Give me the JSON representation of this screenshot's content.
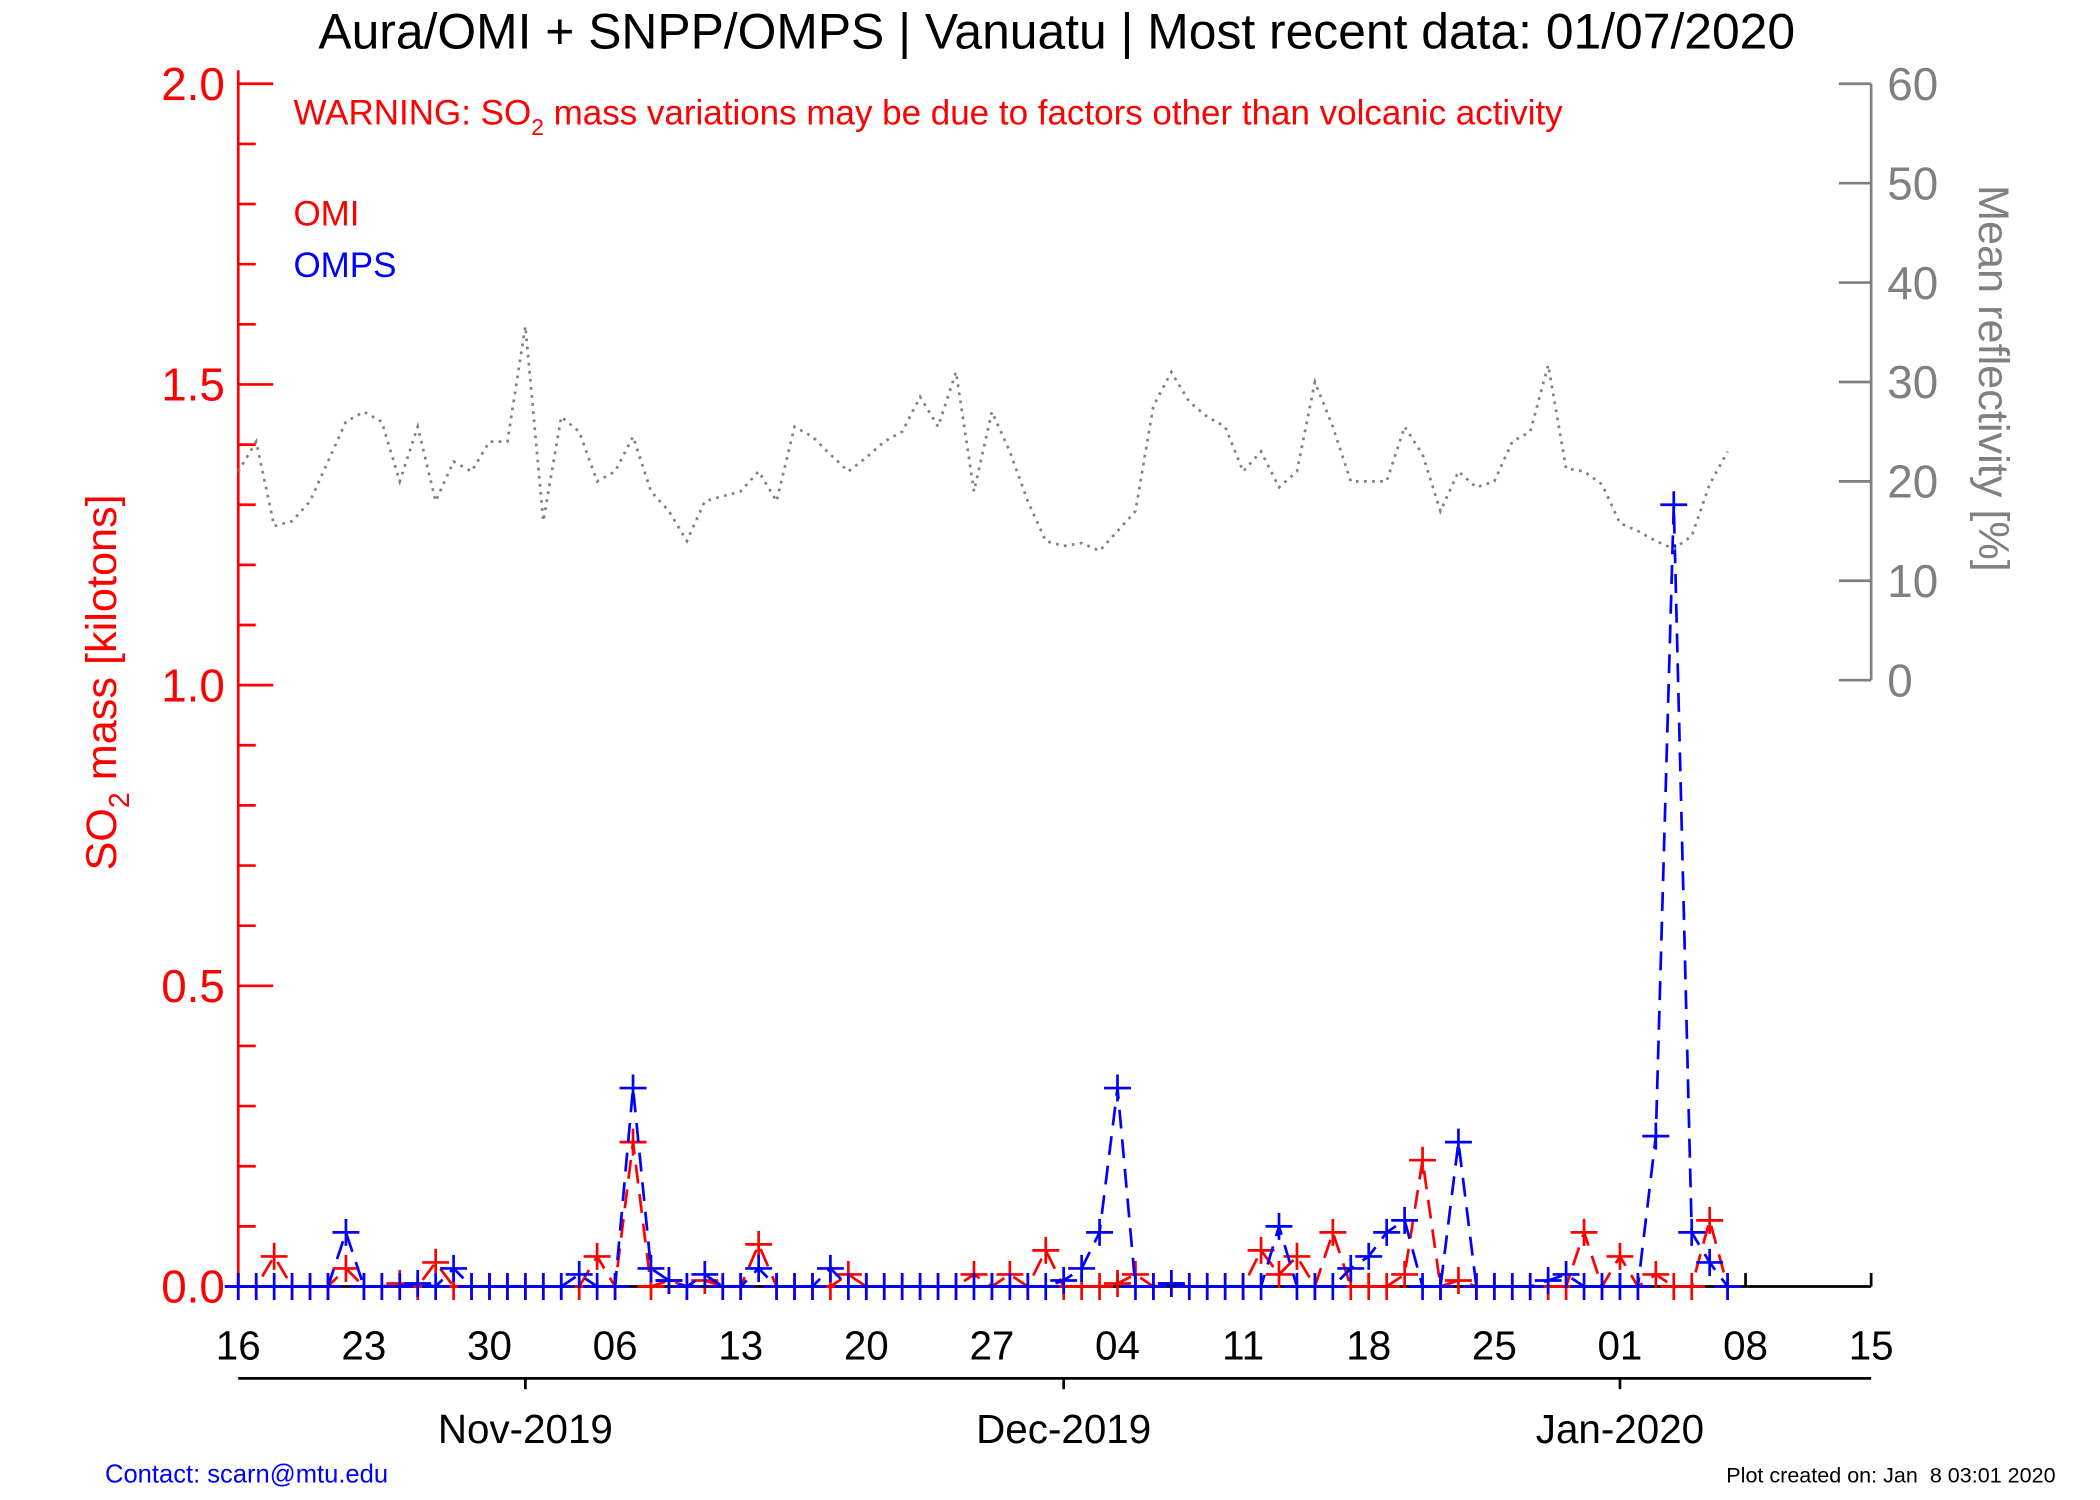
{
  "chart_data": {
    "type": "line",
    "title": "Aura/OMI + SNPP/OMPS | Vanuatu | Most recent data: 01/07/2020",
    "warning": [
      "WARNING: SO",
      "2",
      " mass variations may be due to factors other than volcanic activity"
    ],
    "ylabel": [
      "SO",
      "2",
      " mass [kilotons]"
    ],
    "y2label": "Mean reflectivity [%]",
    "contact": "Contact: scarn@mtu.edu",
    "created": "Plot created on: Jan  8 03:01 2020",
    "x": [
      0,
      1,
      2,
      3,
      4,
      5,
      6,
      7,
      8,
      9,
      10,
      11,
      12,
      13,
      14,
      15,
      16,
      17,
      18,
      19,
      20,
      21,
      22,
      23,
      24,
      25,
      26,
      27,
      28,
      29,
      30,
      31,
      32,
      33,
      34,
      35,
      36,
      37,
      38,
      39,
      40,
      41,
      42,
      43,
      44,
      45,
      46,
      47,
      48,
      49,
      50,
      51,
      52,
      53,
      54,
      55,
      56,
      57,
      58,
      59,
      60,
      61,
      62,
      63,
      64,
      65,
      66,
      67,
      68,
      69,
      70,
      71,
      72,
      73,
      74,
      75,
      76,
      77,
      78,
      79,
      80,
      81,
      82,
      83
    ],
    "xlim": [
      0,
      91
    ],
    "xticks": [
      {
        "value": 0,
        "label": "16"
      },
      {
        "value": 7,
        "label": "23"
      },
      {
        "value": 14,
        "label": "30"
      },
      {
        "value": 21,
        "label": "06"
      },
      {
        "value": 28,
        "label": "13"
      },
      {
        "value": 35,
        "label": "20"
      },
      {
        "value": 42,
        "label": "27"
      },
      {
        "value": 49,
        "label": "04"
      },
      {
        "value": 56,
        "label": "11"
      },
      {
        "value": 63,
        "label": "18"
      },
      {
        "value": 70,
        "label": "25"
      },
      {
        "value": 77,
        "label": "01"
      },
      {
        "value": 84,
        "label": "08"
      },
      {
        "value": 91,
        "label": "15"
      }
    ],
    "months": [
      {
        "value": 16,
        "label": "Nov-2019"
      },
      {
        "value": 46,
        "label": "Dec-2019"
      },
      {
        "value": 77,
        "label": "Jan-2020"
      }
    ],
    "ylim": [
      0,
      2
    ],
    "yticks": [
      {
        "value": 0,
        "label": "0.0"
      },
      {
        "value": 0.5,
        "label": "0.5"
      },
      {
        "value": 1,
        "label": "1.0"
      },
      {
        "value": 1.5,
        "label": "1.5"
      },
      {
        "value": 2,
        "label": "2.0"
      }
    ],
    "y2lim": [
      -61,
      60
    ],
    "y2ticks": [
      0,
      10,
      20,
      30,
      40,
      50,
      60
    ],
    "series": [
      {
        "name": "OMI",
        "color": "#ff0000",
        "values": [
          0,
          0,
          0.05,
          0,
          0,
          0,
          0.03,
          0,
          0,
          0.005,
          0,
          0.04,
          0,
          0,
          0,
          0,
          0,
          0,
          0,
          0,
          0.05,
          0,
          0.24,
          0,
          0.01,
          0,
          0.01,
          0,
          0,
          0.07,
          0,
          0,
          0,
          0,
          0.02,
          0,
          0,
          0,
          0,
          0,
          0,
          0.02,
          0,
          0.02,
          0,
          0.06,
          0,
          0,
          0,
          0.005,
          0.02,
          0,
          0.005,
          0,
          0,
          0,
          0,
          0.06,
          0.02,
          0.05,
          0,
          0.09,
          0,
          0,
          0,
          0.02,
          0.21,
          0,
          0.01,
          0,
          0,
          0,
          0,
          0,
          0,
          0.09,
          0,
          0.05,
          0,
          0.02,
          0,
          0,
          0.11,
          0
        ]
      },
      {
        "name": "OMPS",
        "color": "#0000ff",
        "values": [
          0,
          0,
          0,
          0,
          0,
          0,
          0.09,
          0,
          0,
          0,
          0.005,
          0,
          0.03,
          0,
          0,
          0,
          0,
          0,
          0,
          0.02,
          0,
          0,
          0.33,
          0.03,
          0.01,
          0,
          0.02,
          0,
          0,
          0.03,
          0,
          0,
          0,
          0.03,
          0,
          0,
          0,
          0,
          0,
          0,
          0,
          0,
          0,
          0,
          0,
          0,
          0.01,
          0.03,
          0.09,
          0.33,
          0,
          0,
          0.005,
          0,
          0,
          0,
          0,
          0,
          0.1,
          0,
          0,
          0,
          0.03,
          0.05,
          0.09,
          0.11,
          0,
          0,
          0.24,
          0,
          0,
          0,
          0,
          0.01,
          0.02,
          0,
          0,
          0,
          0,
          0.25,
          1.3,
          0.09,
          0.04,
          0
        ]
      },
      {
        "name": "Mean reflectivity",
        "color": "#808080",
        "axis": "y2",
        "values": [
          21,
          24,
          15.5,
          16,
          18,
          22,
          26,
          27,
          26,
          20,
          25.5,
          18,
          22,
          21,
          24,
          24,
          35.6,
          16,
          26.5,
          25,
          20,
          21,
          24.5,
          19,
          17,
          14,
          18,
          18.5,
          19,
          21,
          18,
          25.5,
          24.5,
          22.7,
          21,
          22.4,
          24,
          25,
          28.5,
          25.5,
          31,
          19,
          27,
          23,
          18,
          14,
          13.5,
          13.8,
          13,
          15,
          17,
          27.6,
          31,
          28,
          26.5,
          25.5,
          21,
          23,
          19.4,
          21,
          30,
          25.5,
          20,
          20,
          20,
          25.5,
          22.7,
          17,
          21,
          19.4,
          20,
          24,
          25,
          31.7,
          21.3,
          21,
          19.7,
          15.8,
          15,
          14,
          13.2,
          14.5,
          19.7,
          23
        ]
      }
    ]
  }
}
